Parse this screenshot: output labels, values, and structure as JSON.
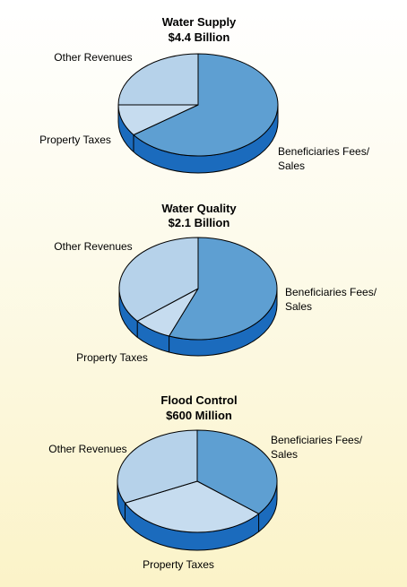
{
  "colors": {
    "fees": "#5e9fd2",
    "property": "#c6dcef",
    "other": "#b6d2ea",
    "side": "#1b6bbd",
    "side_dark": "#0b4f98",
    "edge": "#000000"
  },
  "chart_data": [
    {
      "type": "pie",
      "title": "Water Supply",
      "subtitle": "$4.4 Billion",
      "categories": [
        "Beneficiaries Fees/ Sales",
        "Property Taxes",
        "Other Revenues"
      ],
      "values": [
        65,
        10,
        25
      ]
    },
    {
      "type": "pie",
      "title": "Water Quality",
      "subtitle": "$2.1 Billion",
      "categories": [
        "Beneficiaries Fees/ Sales",
        "Property Taxes",
        "Other Revenues"
      ],
      "values": [
        56,
        8,
        36
      ]
    },
    {
      "type": "pie",
      "title": "Flood Control",
      "subtitle": "$600 Million",
      "categories": [
        "Beneficiaries Fees/ Sales",
        "Property Taxes",
        "Other Revenues"
      ],
      "values": [
        36,
        32,
        32
      ]
    }
  ]
}
